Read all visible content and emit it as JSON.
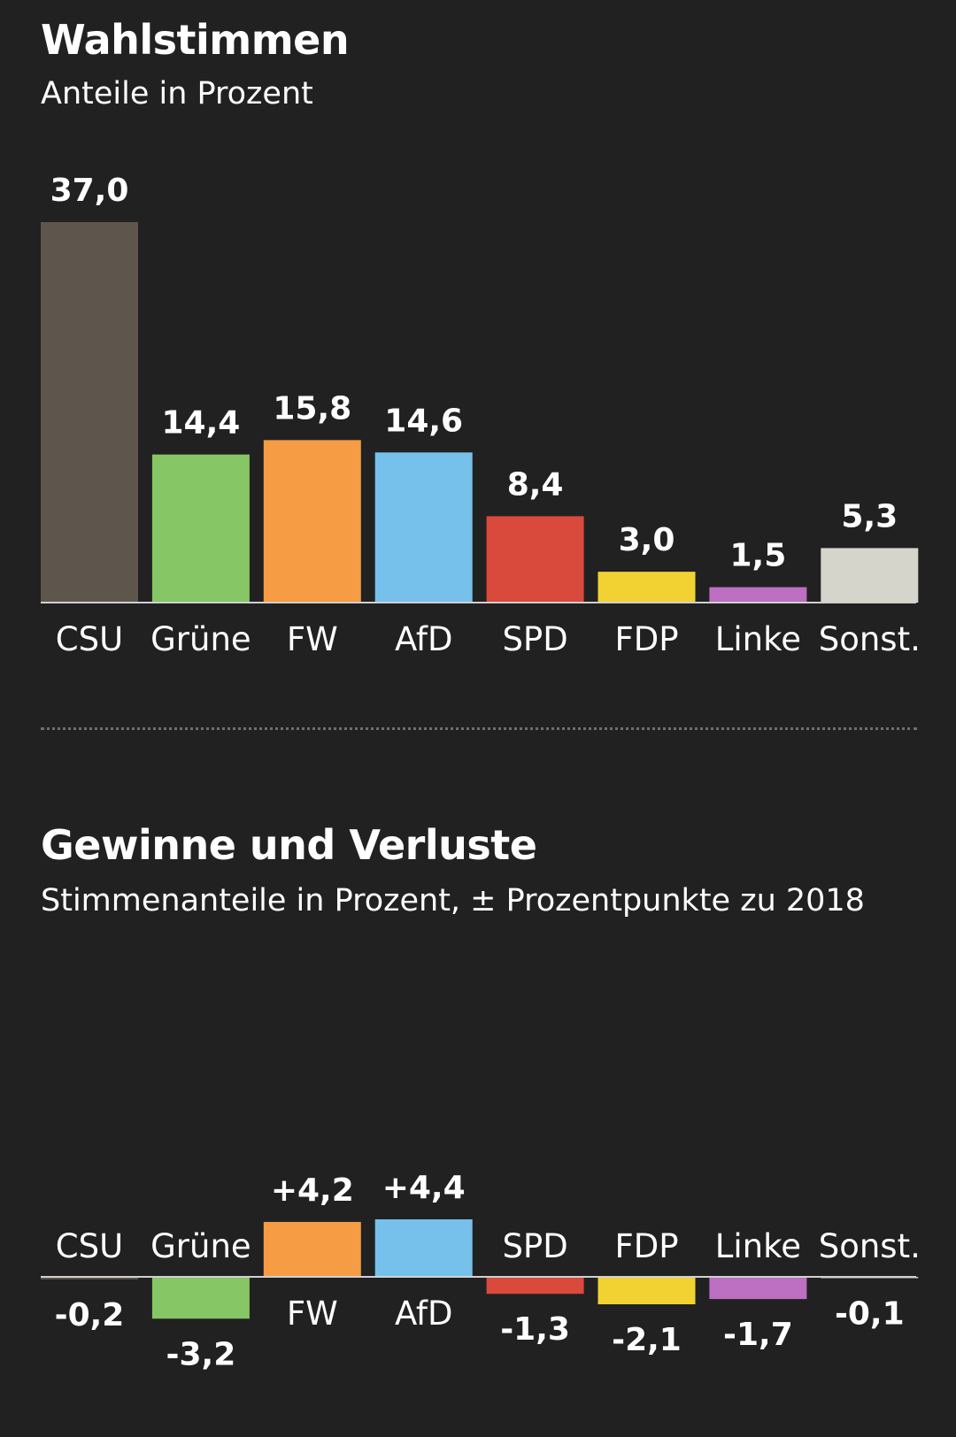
{
  "chart_data": [
    {
      "type": "bar",
      "title": "Wahlstimmen",
      "subtitle": "Anteile in Prozent",
      "categories": [
        "CSU",
        "Grüne",
        "FW",
        "AfD",
        "SPD",
        "FDP",
        "Linke",
        "Sonst."
      ],
      "values": [
        37.0,
        14.4,
        15.8,
        14.6,
        8.4,
        3.0,
        1.5,
        5.3
      ],
      "value_labels": [
        "37,0",
        "14,4",
        "15,8",
        "14,6",
        "8,4",
        "3,0",
        "1,5",
        "5,3"
      ],
      "colors": [
        "#5e554d",
        "#86c665",
        "#f59c45",
        "#76c1ec",
        "#d9493c",
        "#f2d232",
        "#bd6fc2",
        "#d6d5cc"
      ],
      "xlabel": "",
      "ylabel": "",
      "ylim": [
        0,
        37.0
      ],
      "grid": false
    },
    {
      "type": "bar",
      "title": "Gewinne und Verluste",
      "subtitle": "Stimmenanteile in Prozent, ± Prozentpunkte zu 2018",
      "categories": [
        "CSU",
        "Grüne",
        "FW",
        "AfD",
        "SPD",
        "FDP",
        "Linke",
        "Sonst."
      ],
      "values": [
        -0.2,
        -3.2,
        4.2,
        4.4,
        -1.3,
        -2.1,
        -1.7,
        -0.1
      ],
      "value_labels": [
        "-0,2",
        "-3,2",
        "+4,2",
        "+4,4",
        "-1,3",
        "-2,1",
        "-1,7",
        "-0,1"
      ],
      "colors": [
        "#5e554d",
        "#86c665",
        "#f59c45",
        "#76c1ec",
        "#d9493c",
        "#f2d232",
        "#bd6fc2",
        "#d6d5cc"
      ],
      "xlabel": "",
      "ylabel": "",
      "ylim": [
        -3.2,
        4.4
      ],
      "grid": false
    }
  ]
}
